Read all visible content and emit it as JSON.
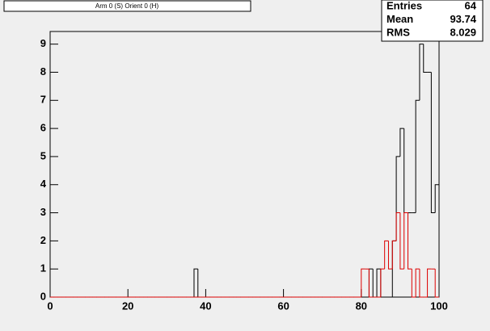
{
  "chart_data": {
    "type": "histogram",
    "title": "Arm 0 (S) Orient 0 (H)",
    "stats": [
      {
        "label": "Entries",
        "value": "64"
      },
      {
        "label": "Mean",
        "value": "93.74"
      },
      {
        "label": "RMS",
        "value": "8.029"
      }
    ],
    "bins": [
      0,
      1,
      2,
      3,
      4,
      5,
      6,
      7,
      8,
      9,
      10,
      11,
      12,
      13,
      14,
      15,
      16,
      17,
      18,
      19,
      20,
      21,
      22,
      23,
      24,
      25,
      26,
      27,
      28,
      29,
      30,
      31,
      32,
      33,
      34,
      35,
      36,
      37,
      38,
      39,
      40,
      41,
      42,
      43,
      44,
      45,
      46,
      47,
      48,
      49,
      50,
      51,
      52,
      53,
      54,
      55,
      56,
      57,
      58,
      59,
      60,
      61,
      62,
      63,
      64,
      65,
      66,
      67,
      68,
      69,
      70,
      71,
      72,
      73,
      74,
      75,
      76,
      77,
      78,
      79,
      80,
      81,
      82,
      83,
      84,
      85,
      86,
      87,
      88,
      89,
      90,
      91,
      92,
      93,
      94,
      95,
      96,
      97,
      98,
      99,
      100
    ],
    "series": [
      {
        "color": "#000000",
        "values": [
          0,
          0,
          0,
          0,
          0,
          0,
          0,
          0,
          0,
          0,
          0,
          0,
          0,
          0,
          0,
          0,
          0,
          0,
          0,
          0,
          0,
          0,
          0,
          0,
          0,
          0,
          0,
          0,
          0,
          0,
          0,
          0,
          0,
          0,
          0,
          0,
          0,
          1,
          0,
          0,
          0,
          0,
          0,
          0,
          0,
          0,
          0,
          0,
          0,
          0,
          0,
          0,
          0,
          0,
          0,
          0,
          0,
          0,
          0,
          0,
          0,
          0,
          0,
          0,
          0,
          0,
          0,
          0,
          0,
          0,
          0,
          0,
          0,
          0,
          0,
          0,
          0,
          0,
          0,
          0,
          0,
          0,
          1,
          0,
          1,
          0,
          0,
          0,
          2,
          5,
          6,
          3,
          3,
          3,
          7,
          9,
          8,
          8,
          3,
          4
        ]
      },
      {
        "color": "#dd0000",
        "values": [
          0,
          0,
          0,
          0,
          0,
          0,
          0,
          0,
          0,
          0,
          0,
          0,
          0,
          0,
          0,
          0,
          0,
          0,
          0,
          0,
          0,
          0,
          0,
          0,
          0,
          0,
          0,
          0,
          0,
          0,
          0,
          0,
          0,
          0,
          0,
          0,
          0,
          0,
          0,
          0,
          0,
          0,
          0,
          0,
          0,
          0,
          0,
          0,
          0,
          0,
          0,
          0,
          0,
          0,
          0,
          0,
          0,
          0,
          0,
          0,
          0,
          0,
          0,
          0,
          0,
          0,
          0,
          0,
          0,
          0,
          0,
          0,
          0,
          0,
          0,
          0,
          0,
          0,
          0,
          0,
          1,
          1,
          0,
          0,
          0,
          1,
          2,
          1,
          2,
          3,
          1,
          3,
          1,
          0,
          1,
          0,
          0,
          1,
          1,
          0
        ]
      }
    ],
    "xlim": [
      0,
      100
    ],
    "ylim": [
      0,
      9.45
    ],
    "xticks": [
      0,
      20,
      40,
      60,
      80,
      100
    ],
    "yticks": [
      0,
      1,
      2,
      3,
      4,
      5,
      6,
      7,
      8,
      9
    ]
  }
}
